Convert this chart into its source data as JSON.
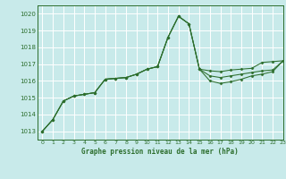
{
  "title": "Graphe pression niveau de la mer (hPa)",
  "bg_color": "#c8eaea",
  "grid_color": "#ffffff",
  "line_color": "#2d6e2d",
  "xlim": [
    -0.5,
    23
  ],
  "ylim": [
    1012.5,
    1020.5
  ],
  "yticks": [
    1013,
    1014,
    1015,
    1016,
    1017,
    1018,
    1019,
    1020
  ],
  "xticks": [
    0,
    1,
    2,
    3,
    4,
    5,
    6,
    7,
    8,
    9,
    10,
    11,
    12,
    13,
    14,
    15,
    16,
    17,
    18,
    19,
    20,
    21,
    22,
    23
  ],
  "series": [
    [
      1013.0,
      1013.7,
      1014.8,
      1015.1,
      1015.2,
      1015.3,
      1016.1,
      1016.15,
      1016.2,
      1016.4,
      1016.7,
      1016.85,
      1018.6,
      1019.85,
      1019.4,
      1016.7,
      1016.6,
      1016.55,
      1016.65,
      1016.7,
      1016.75,
      1017.1,
      1017.15,
      1017.2
    ],
    [
      1013.0,
      1013.7,
      1014.8,
      1015.1,
      1015.2,
      1015.3,
      1016.1,
      1016.15,
      1016.2,
      1016.4,
      1016.7,
      1016.85,
      1018.6,
      1019.85,
      1019.4,
      1016.7,
      1016.3,
      1016.2,
      1016.3,
      1016.4,
      1016.5,
      1016.6,
      1016.65,
      1017.2
    ],
    [
      1013.0,
      1013.7,
      1014.8,
      1015.1,
      1015.2,
      1015.3,
      1016.1,
      1016.15,
      1016.2,
      1016.4,
      1016.7,
      1016.85,
      1018.6,
      1019.85,
      1019.4,
      1016.7,
      1016.0,
      1015.85,
      1015.95,
      1016.1,
      1016.3,
      1016.4,
      1016.55,
      1017.2
    ]
  ]
}
